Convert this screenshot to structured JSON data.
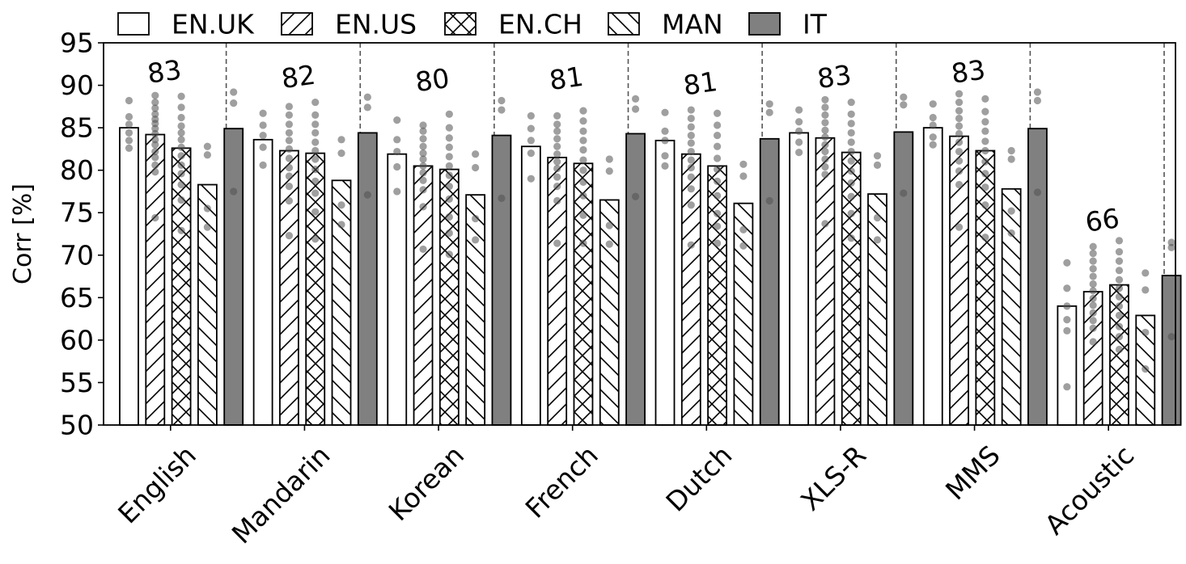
{
  "chart_data": {
    "type": "bar",
    "ylabel": "Corr [%]",
    "ylim": [
      50,
      95
    ],
    "yticks": [
      50,
      55,
      60,
      65,
      70,
      75,
      80,
      85,
      90,
      95
    ],
    "legend_placement": "top",
    "categories": [
      "English",
      "Mandarin",
      "Korean",
      "French",
      "Dutch",
      "XLS-R",
      "MMS",
      "Acoustic"
    ],
    "series": [
      {
        "name": "EN.UK",
        "fill": "#ffffff",
        "pattern": "none",
        "values": [
          85.0,
          83.6,
          81.9,
          82.8,
          83.5,
          84.4,
          85.0,
          64.0
        ]
      },
      {
        "name": "EN.US",
        "fill": "#ffffff",
        "pattern": "diagonal-forward",
        "values": [
          84.2,
          82.3,
          80.5,
          81.5,
          81.9,
          83.8,
          84.0,
          65.7
        ]
      },
      {
        "name": "EN.CH",
        "fill": "#ffffff",
        "pattern": "crosshatch",
        "values": [
          82.6,
          82.0,
          80.1,
          80.8,
          80.5,
          82.1,
          82.3,
          66.5
        ]
      },
      {
        "name": "MAN",
        "fill": "#ffffff",
        "pattern": "diagonal-back",
        "values": [
          78.3,
          78.8,
          77.1,
          76.5,
          76.1,
          77.2,
          77.8,
          62.9
        ]
      },
      {
        "name": "IT",
        "fill": "#808080",
        "pattern": "solid",
        "values": [
          84.9,
          84.4,
          84.1,
          84.3,
          83.7,
          84.5,
          84.9,
          67.6
        ]
      }
    ],
    "group_averages": [
      "83",
      "82",
      "80",
      "81",
      "81",
      "83",
      "83",
      "66"
    ],
    "scatter_points": [
      [
        [
          88.2,
          86.3,
          85.4,
          84.4,
          83.5,
          82.6
        ],
        [
          88.8,
          88.0,
          87.3,
          86.6,
          86.0,
          85.5,
          84.9,
          84.3,
          83.6,
          83.0,
          82.2,
          81.5,
          80.6,
          79.8,
          74.4
        ],
        [
          88.7,
          87.4,
          86.2,
          85.2,
          84.4,
          83.6,
          82.7,
          81.7,
          80.6,
          79.6,
          78.3,
          76.5,
          72.9
        ],
        [
          82.8,
          81.8,
          75.5,
          73.3
        ],
        [
          89.2,
          87.9,
          77.5
        ]
      ],
      [
        [
          86.7,
          85.3,
          84.1,
          82.7,
          80.6
        ],
        [
          87.5,
          86.5,
          85.4,
          84.4,
          83.5,
          82.5,
          81.4,
          80.3,
          79.3,
          78.1,
          76.4,
          72.3
        ],
        [
          88.0,
          86.5,
          85.4,
          84.4,
          83.3,
          82.3,
          81.3,
          80.1,
          78.7,
          77.3,
          75.1,
          71.9
        ],
        [
          83.6,
          82.0,
          75.9,
          73.6
        ],
        [
          88.6,
          87.4,
          77.1
        ]
      ],
      [
        [
          85.9,
          83.6,
          82.2,
          80.4,
          77.5
        ],
        [
          85.3,
          84.6,
          83.7,
          82.8,
          82.0,
          81.3,
          80.5,
          79.7,
          78.8,
          77.7,
          75.7,
          70.7
        ],
        [
          86.6,
          85.0,
          83.8,
          82.7,
          81.6,
          80.5,
          79.4,
          78.1,
          76.6,
          74.5,
          72.6,
          70.1
        ],
        [
          81.9,
          80.3,
          74.3,
          71.8
        ],
        [
          88.2,
          87.1,
          76.7
        ]
      ],
      [
        [
          86.4,
          84.9,
          83.5,
          82.0,
          79.0
        ],
        [
          86.4,
          85.4,
          84.6,
          83.7,
          82.8,
          81.9,
          81.0,
          80.2,
          79.2,
          78.1,
          76.4,
          71.4
        ],
        [
          87.0,
          85.8,
          84.6,
          83.5,
          82.4,
          81.2,
          80.0,
          78.6,
          77.0,
          74.7,
          71.4
        ],
        [
          81.3,
          79.9,
          73.5,
          71.3
        ],
        [
          88.4,
          87.2,
          76.9
        ]
      ],
      [
        [
          86.8,
          84.6,
          83.5,
          81.7,
          80.5
        ],
        [
          87.1,
          86.1,
          85.1,
          84.1,
          83.2,
          82.2,
          81.2,
          80.3,
          79.2,
          77.8,
          75.9,
          71.2
        ],
        [
          86.7,
          85.3,
          84.1,
          82.8,
          81.4,
          80.1,
          78.7,
          77.0,
          74.9,
          73.4,
          71.4
        ],
        [
          80.7,
          79.3,
          73.0,
          71.1
        ],
        [
          87.8,
          86.8,
          76.4
        ]
      ],
      [
        [
          87.1,
          85.7,
          84.6,
          83.3,
          82.1
        ],
        [
          88.3,
          87.4,
          86.5,
          85.6,
          84.7,
          83.9,
          83.0,
          82.2,
          81.3,
          80.4,
          79.5,
          73.7
        ],
        [
          88.0,
          86.6,
          85.5,
          84.4,
          83.3,
          82.2,
          81.1,
          79.9,
          78.5,
          76.9,
          74.9,
          72.0
        ],
        [
          81.7,
          80.6,
          74.4,
          71.8
        ],
        [
          88.6,
          87.7,
          77.3
        ]
      ],
      [
        [
          87.8,
          86.2,
          85.3,
          83.9,
          83.0
        ],
        [
          89.0,
          88.0,
          87.0,
          86.1,
          85.2,
          84.3,
          83.3,
          82.2,
          81.1,
          79.9,
          78.3,
          73.3
        ],
        [
          88.4,
          86.9,
          85.7,
          84.6,
          83.4,
          82.3,
          81.0,
          79.6,
          78.0,
          75.9,
          72.1
        ],
        [
          82.3,
          81.3,
          75.2,
          72.6
        ],
        [
          89.2,
          88.2,
          77.4
        ]
      ],
      [
        [
          69.1,
          66.1,
          64.0,
          62.4,
          61.1,
          54.5
        ],
        [
          71.0,
          70.2,
          69.3,
          68.4,
          67.5,
          66.6,
          65.8,
          64.9,
          64.1,
          63.2,
          62.3,
          61.4,
          59.8
        ],
        [
          71.7,
          70.4,
          69.3,
          68.2,
          67.1,
          66.1,
          65.1,
          64.0,
          62.9,
          61.6,
          60.4,
          58.9
        ],
        [
          67.9,
          65.9,
          60.9,
          56.6
        ],
        [
          71.5,
          70.9,
          60.4
        ]
      ]
    ]
  }
}
